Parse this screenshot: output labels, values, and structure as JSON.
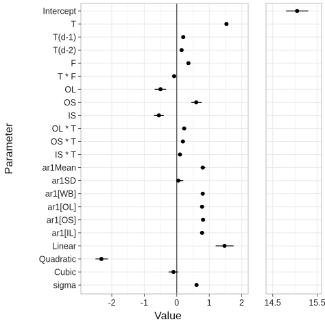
{
  "chart_data": {
    "type": "scatter",
    "subtype": "coefficient-plot-with-error-bars",
    "xlabel": "Value",
    "ylabel": "Parameter",
    "grid": true,
    "reference_line_x": 0,
    "panels": [
      {
        "name": "main",
        "xlim": [
          -2.95,
          2.2
        ],
        "xticks": [
          -2,
          -1,
          0,
          1,
          2
        ],
        "xtick_labels": [
          "-2",
          "-1",
          "0",
          "1",
          "2"
        ]
      },
      {
        "name": "intercept",
        "xlim": [
          14.35,
          15.6
        ],
        "xticks": [
          14.5,
          15.5
        ],
        "xtick_labels": [
          "14.5",
          "15.5"
        ]
      }
    ],
    "parameters": [
      {
        "label": "Intercept",
        "panel": "intercept",
        "estimate": 15.05,
        "lower": 14.8,
        "upper": 15.3
      },
      {
        "label": "T",
        "panel": "main",
        "estimate": 1.53,
        "lower": 1.53,
        "upper": 1.53
      },
      {
        "label": "T(d-1)",
        "panel": "main",
        "estimate": 0.2,
        "lower": 0.2,
        "upper": 0.2
      },
      {
        "label": "T(d-2)",
        "panel": "main",
        "estimate": 0.15,
        "lower": 0.15,
        "upper": 0.15
      },
      {
        "label": "F",
        "panel": "main",
        "estimate": 0.36,
        "lower": 0.36,
        "upper": 0.36
      },
      {
        "label": "T * F",
        "panel": "main",
        "estimate": -0.08,
        "lower": -0.08,
        "upper": -0.08
      },
      {
        "label": "OL",
        "panel": "main",
        "estimate": -0.5,
        "lower": -0.68,
        "upper": -0.33
      },
      {
        "label": "OS",
        "panel": "main",
        "estimate": 0.6,
        "lower": 0.45,
        "upper": 0.77
      },
      {
        "label": "IS",
        "panel": "main",
        "estimate": -0.55,
        "lower": -0.7,
        "upper": -0.4
      },
      {
        "label": "OL * T",
        "panel": "main",
        "estimate": 0.23,
        "lower": 0.17,
        "upper": 0.29
      },
      {
        "label": "OS * T",
        "panel": "main",
        "estimate": 0.19,
        "lower": 0.13,
        "upper": 0.25
      },
      {
        "label": "IS * T",
        "panel": "main",
        "estimate": 0.1,
        "lower": 0.05,
        "upper": 0.15
      },
      {
        "label": "ar1Mean",
        "panel": "main",
        "estimate": 0.8,
        "lower": 0.74,
        "upper": 0.88
      },
      {
        "label": "ar1SD",
        "panel": "main",
        "estimate": 0.05,
        "lower": 0.0,
        "upper": 0.2
      },
      {
        "label": "ar1[WB]",
        "panel": "main",
        "estimate": 0.8,
        "lower": 0.8,
        "upper": 0.8
      },
      {
        "label": "ar1[OL]",
        "panel": "main",
        "estimate": 0.78,
        "lower": 0.78,
        "upper": 0.78
      },
      {
        "label": "ar1[OS]",
        "panel": "main",
        "estimate": 0.81,
        "lower": 0.81,
        "upper": 0.81
      },
      {
        "label": "ar1[IL]",
        "panel": "main",
        "estimate": 0.78,
        "lower": 0.78,
        "upper": 0.78
      },
      {
        "label": "Linear",
        "panel": "main",
        "estimate": 1.47,
        "lower": 1.2,
        "upper": 1.75
      },
      {
        "label": "Quadratic",
        "panel": "main",
        "estimate": -2.32,
        "lower": -2.5,
        "upper": -2.12
      },
      {
        "label": "Cubic",
        "panel": "main",
        "estimate": -0.1,
        "lower": -0.25,
        "upper": 0.05
      },
      {
        "label": "sigma",
        "panel": "main",
        "estimate": 0.61,
        "lower": 0.61,
        "upper": 0.61
      }
    ],
    "colors": {
      "point": "#000000",
      "gridline": "#ebebeb",
      "frame": "#b8b8b8",
      "reference_line": "#4d4d4d"
    }
  }
}
